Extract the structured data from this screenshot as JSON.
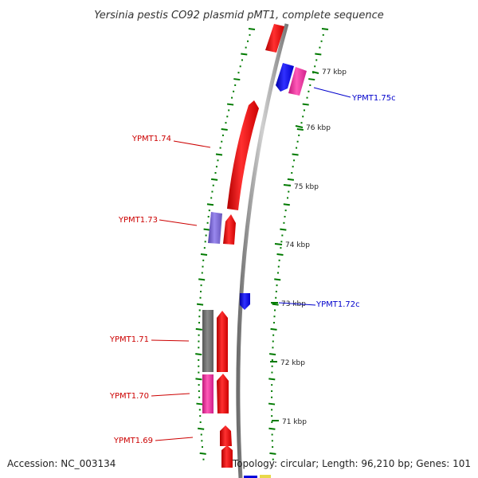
{
  "title": "Yersinia pestis CO92 plasmid pMT1, complete sequence",
  "footer": {
    "accession": "Accession: NC_003134",
    "summary": "Topology: circular; Length: 96,210 bp; Genes: 101"
  },
  "colors": {
    "forward_cds": "#ee0000",
    "reverse_cds": "#0000dd",
    "pink_cds": "#ee2a9a",
    "purple_cds": "#7766cc",
    "gray_cds": "#707070",
    "tick": "#007a00",
    "backbone": "#8c8c8c",
    "label_red": "#cc0000",
    "label_blue": "#0000cc"
  },
  "scale": [
    {
      "label": "77 kbp"
    },
    {
      "label": "76 kbp"
    },
    {
      "label": "75 kbp"
    },
    {
      "label": "74 kbp"
    },
    {
      "label": "73 kbp"
    },
    {
      "label": "72 kbp"
    },
    {
      "label": "71 kbp"
    }
  ],
  "genes": [
    {
      "label": "YPMT1.75c",
      "strand": "reverse"
    },
    {
      "label": "YPMT1.74",
      "strand": "forward"
    },
    {
      "label": "YPMT1.73",
      "strand": "forward"
    },
    {
      "label": "YPMT1.72c",
      "strand": "reverse"
    },
    {
      "label": "YPMT1.71",
      "strand": "forward"
    },
    {
      "label": "YPMT1.70",
      "strand": "forward"
    },
    {
      "label": "YPMT1.69",
      "strand": "forward"
    }
  ]
}
